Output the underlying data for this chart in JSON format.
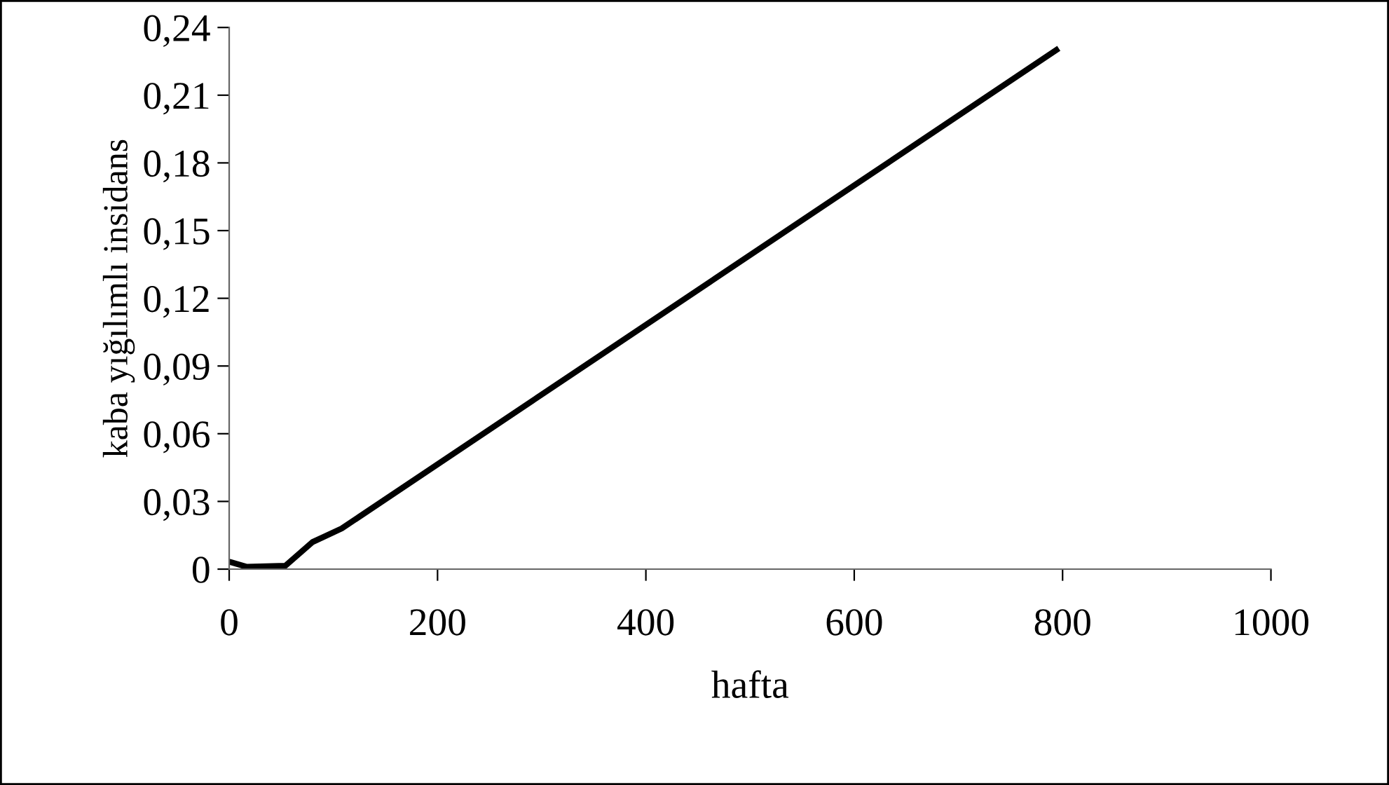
{
  "chart_data": {
    "type": "line",
    "xlabel": "hafta",
    "ylabel": "kaba yığılımlı insidans",
    "x": [
      2,
      17,
      54,
      80,
      108,
      794
    ],
    "series": [
      {
        "color": "#000000",
        "values": [
          0.003,
          0.001,
          0.0015,
          0.012,
          0.018,
          0.23
        ]
      }
    ],
    "xlim": [
      0,
      1000
    ],
    "xticks": [
      0,
      200,
      400,
      600,
      800,
      1000
    ],
    "ylim": [
      0,
      0.24
    ],
    "yticks": [
      {
        "value": 0,
        "label": "0"
      },
      {
        "value": 0.03,
        "label": "0,03"
      },
      {
        "value": 0.06,
        "label": "0,06"
      },
      {
        "value": 0.09,
        "label": "0,09"
      },
      {
        "value": 0.12,
        "label": "0,12"
      },
      {
        "value": 0.15,
        "label": "0,15"
      },
      {
        "value": 0.18,
        "label": "0,18"
      },
      {
        "value": 0.21,
        "label": "0,21"
      },
      {
        "value": 0.24,
        "label": "0,24"
      }
    ],
    "grid": false,
    "legend": false,
    "marker": "none",
    "line_style": "solid"
  }
}
